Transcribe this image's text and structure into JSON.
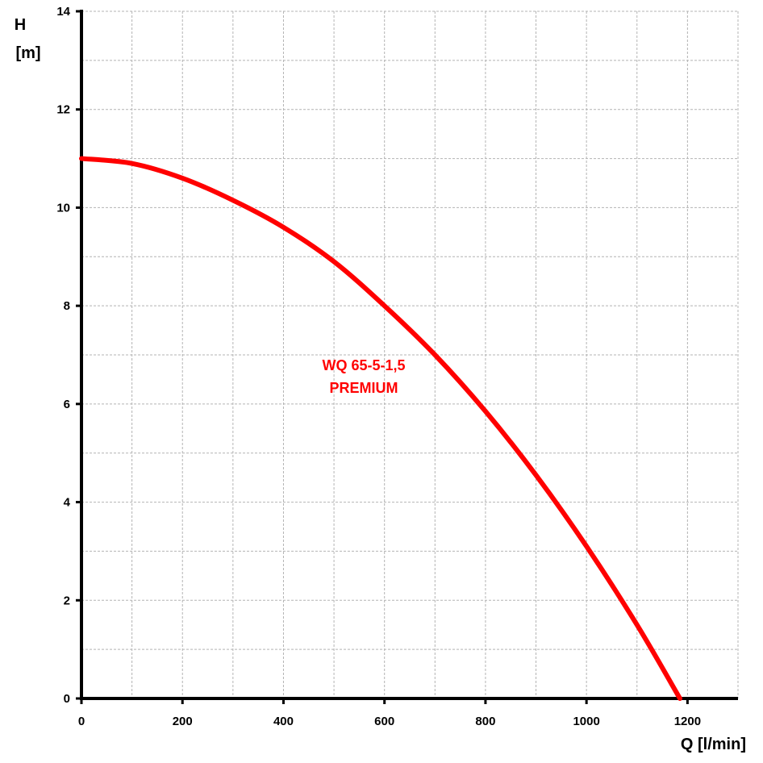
{
  "chart_data": {
    "type": "line",
    "title": "",
    "xlabel": "Q [l/min]",
    "ylabel_line1": "H",
    "ylabel_line2": "[m]",
    "xlim": [
      0,
      1300
    ],
    "ylim": [
      0,
      14
    ],
    "x_ticks": [
      0,
      200,
      400,
      600,
      800,
      1000,
      1200
    ],
    "y_ticks": [
      0,
      2,
      4,
      6,
      8,
      10,
      12,
      14
    ],
    "x_minor_step": 100,
    "y_minor_step": 1,
    "grid": true,
    "series": [
      {
        "color": "#ff0000",
        "x": [
          0,
          100,
          200,
          300,
          400,
          500,
          600,
          700,
          800,
          900,
          1000,
          1100,
          1185
        ],
        "y": [
          11.0,
          10.9,
          10.6,
          10.15,
          9.6,
          8.9,
          8.0,
          7.0,
          5.85,
          4.55,
          3.1,
          1.5,
          0.0
        ]
      }
    ],
    "annotation": {
      "line1": "WQ 65-5-1,5",
      "line2": "PREMIUM",
      "color": "#ff0000"
    }
  }
}
